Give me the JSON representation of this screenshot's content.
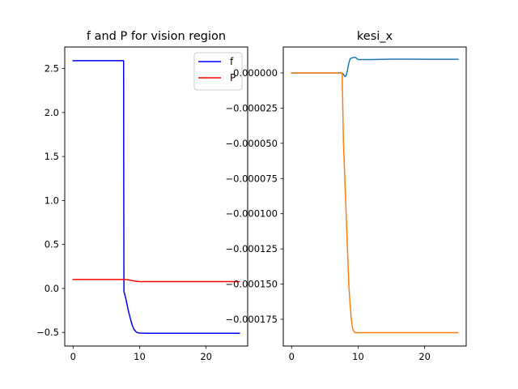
{
  "chart_data": [
    {
      "type": "line",
      "title": "f and P for vision region",
      "xlabel": "",
      "ylabel": "",
      "xlim": [
        -1.25,
        26.25
      ],
      "ylim": [
        -0.655,
        2.745
      ],
      "xticks": [
        0,
        10,
        20
      ],
      "xtick_labels": [
        "0",
        "10",
        "20"
      ],
      "yticks": [
        -0.5,
        0.0,
        0.5,
        1.0,
        1.5,
        2.0,
        2.5
      ],
      "ytick_labels": [
        "−0.5",
        "0.0",
        "0.5",
        "1.0",
        "1.5",
        "2.0",
        "2.5"
      ],
      "grid": false,
      "legend": {
        "placement": "top-right",
        "entries": [
          "f",
          "P"
        ]
      },
      "series": [
        {
          "name": "f",
          "color": "#0000ff",
          "x": [
            0,
            7.6,
            7.62,
            7.65,
            7.75,
            8.0,
            8.3,
            8.6,
            8.9,
            9.2,
            9.5,
            9.8,
            10.1,
            10.5,
            11,
            15,
            20,
            25
          ],
          "y": [
            2.59,
            2.59,
            1.2,
            -0.04,
            -0.06,
            -0.14,
            -0.25,
            -0.34,
            -0.42,
            -0.47,
            -0.495,
            -0.505,
            -0.508,
            -0.509,
            -0.51,
            -0.51,
            -0.51,
            -0.51
          ]
        },
        {
          "name": "P",
          "color": "#ff0000",
          "x": [
            0,
            7.5,
            8.0,
            8.5,
            9.0,
            9.5,
            10.0,
            11,
            15,
            20,
            25
          ],
          "y": [
            0.102,
            0.102,
            0.1,
            0.095,
            0.088,
            0.081,
            0.078,
            0.077,
            0.077,
            0.077,
            0.077
          ]
        }
      ]
    },
    {
      "type": "line",
      "title": "kesi_x",
      "xlabel": "",
      "ylabel": "",
      "xlim": [
        -1.25,
        26.25
      ],
      "ylim": [
        -0.000194,
        1.84e-05
      ],
      "xticks": [
        0,
        10,
        20
      ],
      "xtick_labels": [
        "0",
        "10",
        "20"
      ],
      "yticks": [
        0.0,
        -2.5e-05,
        -5e-05,
        -7.5e-05,
        -0.0001,
        -0.000125,
        -0.00015,
        -0.000175
      ],
      "ytick_labels": [
        "0.000000",
        "−0.000025",
        "−0.000050",
        "−0.000075",
        "−0.000100",
        "−0.000125",
        "−0.000150",
        "−0.000175"
      ],
      "grid": false,
      "series": [
        {
          "color": "#1f77b4",
          "x": [
            0,
            7.6,
            7.8,
            8.0,
            8.2,
            8.4,
            8.6,
            8.8,
            9.0,
            9.3,
            9.6,
            10,
            12,
            15,
            20,
            25
          ],
          "y": [
            0.0,
            0.0,
            -1e-06,
            -2.5e-06,
            -2e-06,
            2e-06,
            7e-06,
            1e-05,
            1.05e-05,
            1.1e-05,
            1.1e-05,
            9.5e-06,
            9.5e-06,
            9.8e-06,
            9.7e-06,
            9.7e-06
          ]
        },
        {
          "color": "#ff7f0e",
          "x": [
            0,
            7.6,
            7.7,
            7.8,
            8.0,
            8.2,
            8.4,
            8.6,
            8.8,
            9.0,
            9.2,
            9.4,
            9.6,
            10,
            12,
            15,
            20,
            25
          ],
          "y": [
            0.0,
            0.0,
            -2.5e-05,
            -5e-05,
            -7.5e-05,
            -0.0001,
            -0.000125,
            -0.00015,
            -0.000165,
            -0.000176,
            -0.000182,
            -0.000184,
            -0.0001845,
            -0.0001845,
            -0.0001845,
            -0.0001845,
            -0.0001845,
            -0.0001845
          ]
        }
      ]
    }
  ]
}
